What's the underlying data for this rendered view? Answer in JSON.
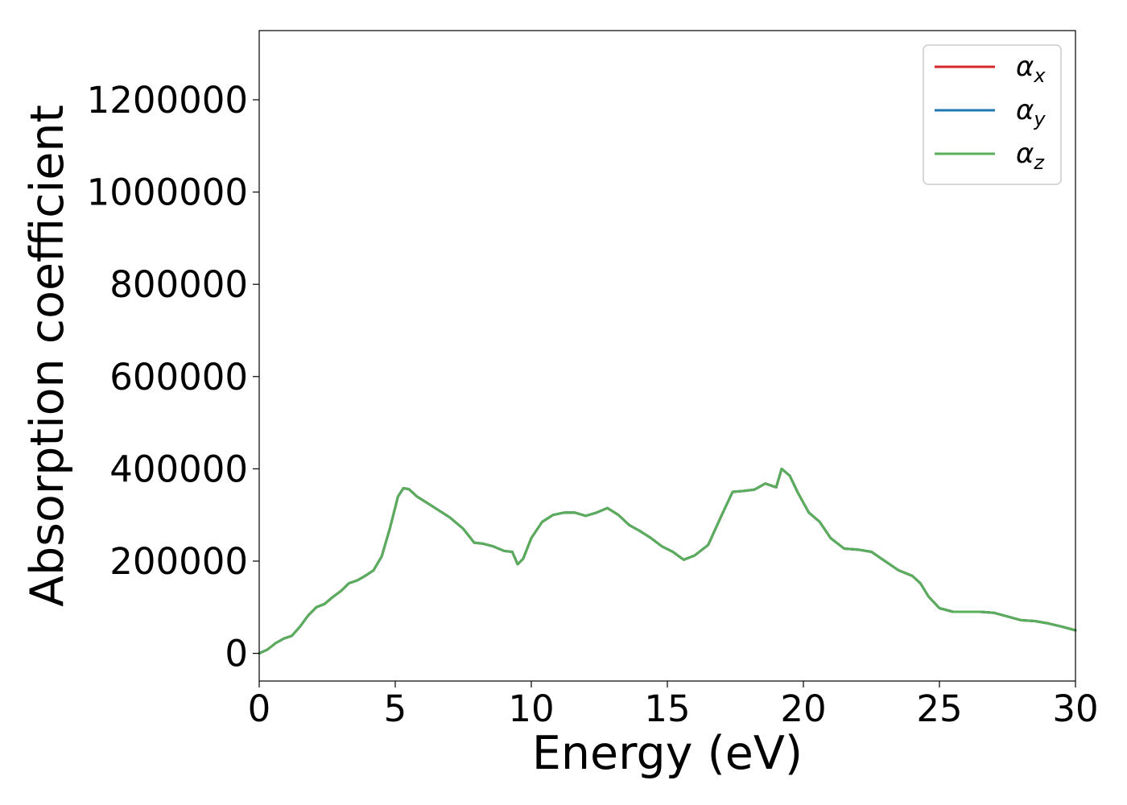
{
  "chart_data": {
    "type": "line",
    "title": "",
    "xlabel": "Energy (eV)",
    "ylabel": "Absorption coefficient",
    "xlim": [
      0,
      30
    ],
    "ylim": [
      -60000,
      1350000
    ],
    "xticks": [
      0,
      5,
      10,
      15,
      20,
      25,
      30
    ],
    "xtick_labels": [
      "0",
      "5",
      "10",
      "15",
      "20",
      "25",
      "30"
    ],
    "yticks": [
      0,
      200000,
      400000,
      600000,
      800000,
      1000000,
      1200000
    ],
    "ytick_labels": [
      "0",
      "200000",
      "400000",
      "600000",
      "800000",
      "1000000",
      "1200000"
    ],
    "grid": false,
    "legend_position": "top-right",
    "x": [
      0,
      0.3,
      0.6,
      0.9,
      1.2,
      1.5,
      1.8,
      2.1,
      2.4,
      2.7,
      3.0,
      3.3,
      3.6,
      3.9,
      4.2,
      4.5,
      4.8,
      5.1,
      5.3,
      5.5,
      5.8,
      6.2,
      6.6,
      7.0,
      7.5,
      7.9,
      8.2,
      8.6,
      9.0,
      9.3,
      9.5,
      9.7,
      10.0,
      10.4,
      10.8,
      11.2,
      11.6,
      12.0,
      12.4,
      12.8,
      13.2,
      13.6,
      14.0,
      14.4,
      14.8,
      15.2,
      15.6,
      16.0,
      16.5,
      17.0,
      17.4,
      17.8,
      18.2,
      18.6,
      19.0,
      19.2,
      19.5,
      19.8,
      20.2,
      20.6,
      21.0,
      21.5,
      22.0,
      22.5,
      23.0,
      23.5,
      24.0,
      24.3,
      24.6,
      25.0,
      25.5,
      26.0,
      26.5,
      27.0,
      27.5,
      28.0,
      28.5,
      29.0,
      29.5,
      30.0
    ],
    "series": [
      {
        "name": "α_x",
        "color": "#d62728",
        "values": [
          0,
          8000,
          22000,
          32000,
          38000,
          58000,
          82000,
          100000,
          107000,
          122000,
          135000,
          152000,
          158000,
          168000,
          180000,
          210000,
          270000,
          340000,
          358000,
          356000,
          340000,
          325000,
          310000,
          295000,
          270000,
          240000,
          238000,
          232000,
          222000,
          220000,
          193000,
          205000,
          250000,
          285000,
          300000,
          305000,
          305000,
          298000,
          305000,
          315000,
          300000,
          278000,
          265000,
          250000,
          232000,
          220000,
          203000,
          212000,
          235000,
          300000,
          350000,
          352000,
          355000,
          368000,
          360000,
          400000,
          385000,
          348000,
          305000,
          285000,
          250000,
          227000,
          225000,
          220000,
          200000,
          180000,
          168000,
          152000,
          123000,
          98000,
          90000,
          90000,
          90000,
          88000,
          80000,
          72000,
          70000,
          65000,
          58000,
          50000
        ]
      },
      {
        "name": "α_y",
        "color": "#1f77b4",
        "values": [
          0,
          8000,
          22000,
          32000,
          38000,
          58000,
          82000,
          100000,
          107000,
          122000,
          135000,
          152000,
          158000,
          168000,
          180000,
          210000,
          270000,
          340000,
          358000,
          356000,
          340000,
          325000,
          310000,
          295000,
          270000,
          240000,
          238000,
          232000,
          222000,
          220000,
          193000,
          205000,
          250000,
          285000,
          300000,
          305000,
          305000,
          298000,
          305000,
          315000,
          300000,
          278000,
          265000,
          250000,
          232000,
          220000,
          203000,
          212000,
          235000,
          300000,
          350000,
          352000,
          355000,
          368000,
          360000,
          400000,
          385000,
          348000,
          305000,
          285000,
          250000,
          227000,
          225000,
          220000,
          200000,
          180000,
          168000,
          152000,
          123000,
          98000,
          90000,
          90000,
          90000,
          88000,
          80000,
          72000,
          70000,
          65000,
          58000,
          50000
        ]
      },
      {
        "name": "α_z",
        "color": "#5aad5a",
        "values": [
          0,
          8000,
          22000,
          32000,
          38000,
          58000,
          82000,
          100000,
          107000,
          122000,
          135000,
          152000,
          158000,
          168000,
          180000,
          210000,
          270000,
          340000,
          358000,
          356000,
          340000,
          325000,
          310000,
          295000,
          270000,
          240000,
          238000,
          232000,
          222000,
          220000,
          193000,
          205000,
          250000,
          285000,
          300000,
          305000,
          305000,
          298000,
          305000,
          315000,
          300000,
          278000,
          265000,
          250000,
          232000,
          220000,
          203000,
          212000,
          235000,
          300000,
          350000,
          352000,
          355000,
          368000,
          360000,
          400000,
          385000,
          348000,
          305000,
          285000,
          250000,
          227000,
          225000,
          220000,
          200000,
          180000,
          168000,
          152000,
          123000,
          98000,
          90000,
          90000,
          90000,
          88000,
          80000,
          72000,
          70000,
          65000,
          58000,
          50000
        ]
      }
    ],
    "legend": [
      {
        "symbol": "α",
        "sub": "x"
      },
      {
        "symbol": "α",
        "sub": "y"
      },
      {
        "symbol": "α",
        "sub": "z"
      }
    ]
  }
}
